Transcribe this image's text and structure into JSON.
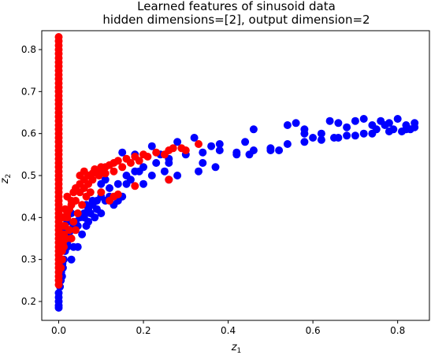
{
  "chart_data": {
    "type": "scatter",
    "title_line1": "Learned features of sinusoid data",
    "title_line2": "hidden dimensions=[2], output dimension=2",
    "xlabel": {
      "base": "z",
      "sub": "1"
    },
    "ylabel": {
      "base": "z",
      "sub": "2"
    },
    "xlim": [
      -0.04,
      0.875
    ],
    "ylim": [
      0.155,
      0.845
    ],
    "xticks": [
      {
        "value": 0.0,
        "label": "0.0"
      },
      {
        "value": 0.2,
        "label": "0.2"
      },
      {
        "value": 0.4,
        "label": "0.4"
      },
      {
        "value": 0.6,
        "label": "0.6"
      },
      {
        "value": 0.8,
        "label": "0.8"
      }
    ],
    "yticks": [
      {
        "value": 0.2,
        "label": "0.2"
      },
      {
        "value": 0.3,
        "label": "0.3"
      },
      {
        "value": 0.4,
        "label": "0.4"
      },
      {
        "value": 0.5,
        "label": "0.5"
      },
      {
        "value": 0.6,
        "label": "0.6"
      },
      {
        "value": 0.7,
        "label": "0.7"
      },
      {
        "value": 0.8,
        "label": "0.8"
      }
    ],
    "series": [
      {
        "color": "#0000ff",
        "points": [
          [
            0.0,
            0.185
          ],
          [
            0.0,
            0.19
          ],
          [
            0.0,
            0.2
          ],
          [
            0.0,
            0.21
          ],
          [
            0.0,
            0.22
          ],
          [
            0.003,
            0.235
          ],
          [
            0.005,
            0.25
          ],
          [
            0.008,
            0.26
          ],
          [
            0.01,
            0.28
          ],
          [
            0.012,
            0.3
          ],
          [
            0.015,
            0.32
          ],
          [
            0.02,
            0.34
          ],
          [
            0.025,
            0.355
          ],
          [
            0.03,
            0.37
          ],
          [
            0.035,
            0.38
          ],
          [
            0.04,
            0.39
          ],
          [
            0.05,
            0.4
          ],
          [
            0.06,
            0.41
          ],
          [
            0.07,
            0.42
          ],
          [
            0.08,
            0.43
          ],
          [
            0.09,
            0.44
          ],
          [
            0.1,
            0.45
          ],
          [
            0.12,
            0.47
          ],
          [
            0.14,
            0.48
          ],
          [
            0.16,
            0.5
          ],
          [
            0.18,
            0.51
          ],
          [
            0.2,
            0.52
          ],
          [
            0.23,
            0.53
          ],
          [
            0.26,
            0.54
          ],
          [
            0.3,
            0.55
          ],
          [
            0.34,
            0.555
          ],
          [
            0.38,
            0.56
          ],
          [
            0.42,
            0.555
          ],
          [
            0.46,
            0.56
          ],
          [
            0.5,
            0.565
          ],
          [
            0.54,
            0.575
          ],
          [
            0.58,
            0.58
          ],
          [
            0.62,
            0.585
          ],
          [
            0.66,
            0.59
          ],
          [
            0.7,
            0.595
          ],
          [
            0.74,
            0.6
          ],
          [
            0.78,
            0.605
          ],
          [
            0.82,
            0.61
          ],
          [
            0.84,
            0.615
          ],
          [
            0.005,
            0.32
          ],
          [
            0.01,
            0.36
          ],
          [
            0.02,
            0.33
          ],
          [
            0.03,
            0.3
          ],
          [
            0.035,
            0.33
          ],
          [
            0.045,
            0.38
          ],
          [
            0.06,
            0.4
          ],
          [
            0.07,
            0.39
          ],
          [
            0.085,
            0.4
          ],
          [
            0.1,
            0.41
          ],
          [
            0.11,
            0.44
          ],
          [
            0.13,
            0.43
          ],
          [
            0.15,
            0.45
          ],
          [
            0.16,
            0.48
          ],
          [
            0.17,
            0.49
          ],
          [
            0.2,
            0.48
          ],
          [
            0.22,
            0.5
          ],
          [
            0.26,
            0.49
          ],
          [
            0.28,
            0.5
          ],
          [
            0.33,
            0.51
          ],
          [
            0.15,
            0.555
          ],
          [
            0.18,
            0.55
          ],
          [
            0.22,
            0.57
          ],
          [
            0.28,
            0.58
          ],
          [
            0.32,
            0.59
          ],
          [
            0.36,
            0.57
          ],
          [
            0.38,
            0.575
          ],
          [
            0.44,
            0.58
          ],
          [
            0.46,
            0.61
          ],
          [
            0.52,
            0.56
          ],
          [
            0.54,
            0.62
          ],
          [
            0.56,
            0.625
          ],
          [
            0.58,
            0.61
          ],
          [
            0.6,
            0.59
          ],
          [
            0.64,
            0.63
          ],
          [
            0.66,
            0.625
          ],
          [
            0.68,
            0.615
          ],
          [
            0.7,
            0.63
          ],
          [
            0.72,
            0.635
          ],
          [
            0.74,
            0.62
          ],
          [
            0.76,
            0.63
          ],
          [
            0.78,
            0.625
          ],
          [
            0.8,
            0.635
          ],
          [
            0.82,
            0.62
          ],
          [
            0.84,
            0.625
          ],
          [
            0.83,
            0.61
          ],
          [
            0.81,
            0.605
          ],
          [
            0.79,
            0.61
          ],
          [
            0.77,
            0.62
          ],
          [
            0.75,
            0.61
          ],
          [
            0.72,
            0.6
          ],
          [
            0.68,
            0.595
          ],
          [
            0.65,
            0.59
          ],
          [
            0.62,
            0.6
          ],
          [
            0.58,
            0.6
          ],
          [
            0.5,
            0.56
          ],
          [
            0.45,
            0.55
          ],
          [
            0.42,
            0.55
          ],
          [
            0.37,
            0.52
          ],
          [
            0.34,
            0.53
          ],
          [
            0.25,
            0.51
          ],
          [
            0.26,
            0.53
          ],
          [
            0.24,
            0.55
          ],
          [
            0.19,
            0.51
          ],
          [
            0.14,
            0.44
          ],
          [
            0.12,
            0.45
          ],
          [
            0.09,
            0.42
          ],
          [
            0.065,
            0.43
          ],
          [
            0.03,
            0.41
          ],
          [
            0.02,
            0.39
          ],
          [
            0.045,
            0.33
          ],
          [
            0.055,
            0.36
          ],
          [
            0.065,
            0.38
          ],
          [
            0.075,
            0.41
          ],
          [
            0.015,
            0.37
          ],
          [
            0.1,
            0.48
          ],
          [
            0.11,
            0.49
          ],
          [
            0.08,
            0.44
          ],
          [
            0.006,
            0.27
          ],
          [
            0.009,
            0.29
          ]
        ]
      },
      {
        "color": "#ff0000",
        "points": [
          [
            0.0,
            0.83
          ],
          [
            0.0,
            0.82
          ],
          [
            0.0,
            0.81
          ],
          [
            0.0,
            0.8
          ],
          [
            0.0,
            0.79
          ],
          [
            0.0,
            0.78
          ],
          [
            0.0,
            0.77
          ],
          [
            0.0,
            0.76
          ],
          [
            0.0,
            0.75
          ],
          [
            0.0,
            0.74
          ],
          [
            0.0,
            0.73
          ],
          [
            0.0,
            0.72
          ],
          [
            0.0,
            0.71
          ],
          [
            0.0,
            0.7
          ],
          [
            0.0,
            0.69
          ],
          [
            0.0,
            0.68
          ],
          [
            0.0,
            0.67
          ],
          [
            0.0,
            0.66
          ],
          [
            0.0,
            0.65
          ],
          [
            0.0,
            0.64
          ],
          [
            0.0,
            0.63
          ],
          [
            0.0,
            0.62
          ],
          [
            0.0,
            0.61
          ],
          [
            0.0,
            0.6
          ],
          [
            0.0,
            0.59
          ],
          [
            0.0,
            0.58
          ],
          [
            0.0,
            0.57
          ],
          [
            0.0,
            0.56
          ],
          [
            0.0,
            0.55
          ],
          [
            0.0,
            0.54
          ],
          [
            0.0,
            0.53
          ],
          [
            0.0,
            0.52
          ],
          [
            0.0,
            0.51
          ],
          [
            0.0,
            0.5
          ],
          [
            0.0,
            0.49
          ],
          [
            0.0,
            0.48
          ],
          [
            0.0,
            0.47
          ],
          [
            0.0,
            0.46
          ],
          [
            0.0,
            0.45
          ],
          [
            0.0,
            0.44
          ],
          [
            0.0,
            0.43
          ],
          [
            0.0,
            0.42
          ],
          [
            0.0,
            0.41
          ],
          [
            0.0,
            0.4
          ],
          [
            0.0,
            0.39
          ],
          [
            0.0,
            0.38
          ],
          [
            0.0,
            0.37
          ],
          [
            0.0,
            0.36
          ],
          [
            0.0,
            0.35
          ],
          [
            0.0,
            0.34
          ],
          [
            0.0,
            0.33
          ],
          [
            0.0,
            0.32
          ],
          [
            0.0,
            0.31
          ],
          [
            0.0,
            0.3
          ],
          [
            0.0,
            0.29
          ],
          [
            0.0,
            0.28
          ],
          [
            0.0,
            0.27
          ],
          [
            0.0,
            0.26
          ],
          [
            0.0,
            0.25
          ],
          [
            0.0,
            0.24
          ],
          [
            0.005,
            0.3
          ],
          [
            0.008,
            0.32
          ],
          [
            0.01,
            0.34
          ],
          [
            0.012,
            0.36
          ],
          [
            0.015,
            0.38
          ],
          [
            0.02,
            0.4
          ],
          [
            0.025,
            0.42
          ],
          [
            0.03,
            0.44
          ],
          [
            0.035,
            0.46
          ],
          [
            0.04,
            0.47
          ],
          [
            0.05,
            0.48
          ],
          [
            0.06,
            0.49
          ],
          [
            0.07,
            0.5
          ],
          [
            0.08,
            0.505
          ],
          [
            0.09,
            0.51
          ],
          [
            0.1,
            0.515
          ],
          [
            0.11,
            0.52
          ],
          [
            0.12,
            0.525
          ],
          [
            0.13,
            0.53
          ],
          [
            0.14,
            0.535
          ],
          [
            0.16,
            0.54
          ],
          [
            0.18,
            0.545
          ],
          [
            0.2,
            0.55
          ],
          [
            0.23,
            0.555
          ],
          [
            0.26,
            0.56
          ],
          [
            0.29,
            0.565
          ],
          [
            0.33,
            0.575
          ],
          [
            0.005,
            0.36
          ],
          [
            0.01,
            0.4
          ],
          [
            0.015,
            0.42
          ],
          [
            0.02,
            0.45
          ],
          [
            0.03,
            0.43
          ],
          [
            0.04,
            0.44
          ],
          [
            0.05,
            0.46
          ],
          [
            0.06,
            0.47
          ],
          [
            0.07,
            0.48
          ],
          [
            0.08,
            0.49
          ],
          [
            0.095,
            0.5
          ],
          [
            0.11,
            0.505
          ],
          [
            0.13,
            0.51
          ],
          [
            0.15,
            0.52
          ],
          [
            0.17,
            0.53
          ],
          [
            0.19,
            0.535
          ],
          [
            0.21,
            0.545
          ],
          [
            0.25,
            0.55
          ],
          [
            0.27,
            0.565
          ],
          [
            0.3,
            0.56
          ],
          [
            0.005,
            0.28
          ],
          [
            0.008,
            0.3
          ],
          [
            0.012,
            0.33
          ],
          [
            0.018,
            0.35
          ],
          [
            0.025,
            0.37
          ],
          [
            0.035,
            0.39
          ],
          [
            0.045,
            0.41
          ],
          [
            0.055,
            0.43
          ],
          [
            0.065,
            0.45
          ],
          [
            0.075,
            0.46
          ],
          [
            0.1,
            0.46
          ],
          [
            0.12,
            0.44
          ],
          [
            0.13,
            0.45
          ],
          [
            0.14,
            0.455
          ],
          [
            0.18,
            0.475
          ],
          [
            0.26,
            0.49
          ],
          [
            0.05,
            0.5
          ],
          [
            0.06,
            0.51
          ],
          [
            0.085,
            0.515
          ],
          [
            0.1,
            0.52
          ],
          [
            0.03,
            0.35
          ],
          [
            0.04,
            0.37
          ],
          [
            0.012,
            0.38
          ],
          [
            0.02,
            0.41
          ]
        ]
      }
    ]
  }
}
